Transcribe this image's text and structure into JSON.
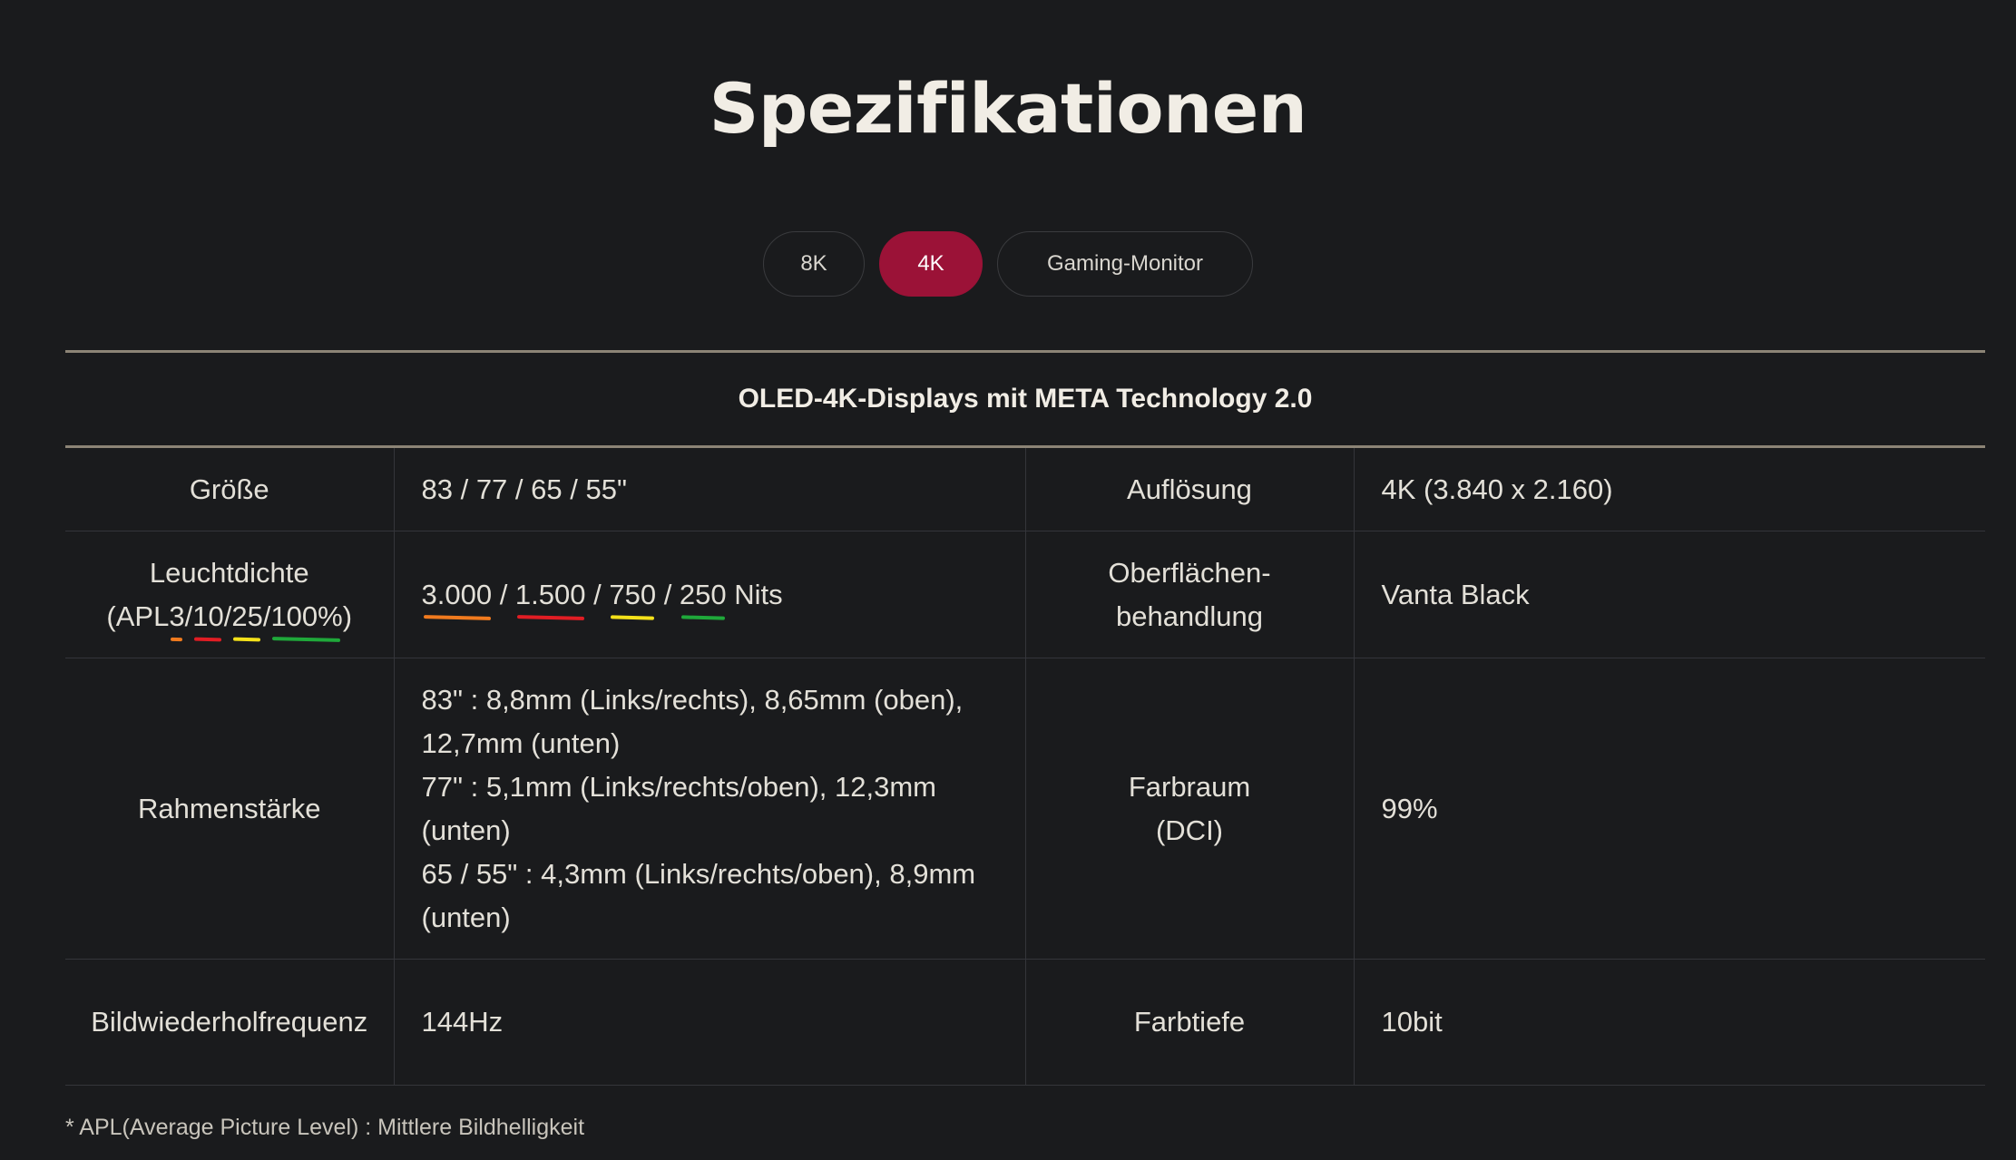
{
  "title": "Spezifikationen",
  "tabs": [
    {
      "label": "8K",
      "active": false
    },
    {
      "label": "4K",
      "active": true
    },
    {
      "label": "Gaming-Monitor",
      "active": false
    }
  ],
  "colors": {
    "background": "#1a1b1d",
    "accent": "#9b1237",
    "underline_3": "#f07a1e",
    "underline_10": "#e11d24",
    "underline_25": "#f4e11a",
    "underline_100": "#1fa83a"
  },
  "table": {
    "caption": "OLED-4K-Displays mit META Technology 2.0",
    "rows": {
      "size": {
        "label": "Größe",
        "value": "83 / 77 / 65 / 55\""
      },
      "resolution": {
        "label": "Auflösung",
        "value": "4K (3.840 x 2.160)"
      },
      "luminance": {
        "label_line1": "Leuchtdichte",
        "label_prefix": "(APL",
        "apl": [
          "3",
          "10",
          "25",
          "100%"
        ],
        "label_suffix": ")",
        "values": [
          "3.000",
          "1.500",
          "750",
          "250"
        ],
        "unit": "Nits"
      },
      "surface": {
        "label_line1": "Oberflächen-",
        "label_line2": "behandlung",
        "value": "Vanta Black"
      },
      "bezel": {
        "label": "Rahmenstärke",
        "lines": [
          "83\" : 8,8mm (Links/rechts), 8,65mm (oben), 12,7mm (unten)",
          "77\" : 5,1mm (Links/rechts/oben), 12,3mm (unten)",
          "65 / 55\" : 4,3mm (Links/rechts/oben), 8,9mm (unten)"
        ]
      },
      "color_space": {
        "label_line1": "Farbraum",
        "label_line2": "(DCI)",
        "value": "99%"
      },
      "refresh_rate": {
        "label": "Bildwiederholfrequenz",
        "value": "144Hz"
      },
      "color_depth": {
        "label": "Farbtiefe",
        "value": "10bit"
      }
    }
  },
  "footnote": "* APL(Average Picture Level) : Mittlere Bildhelligkeit"
}
